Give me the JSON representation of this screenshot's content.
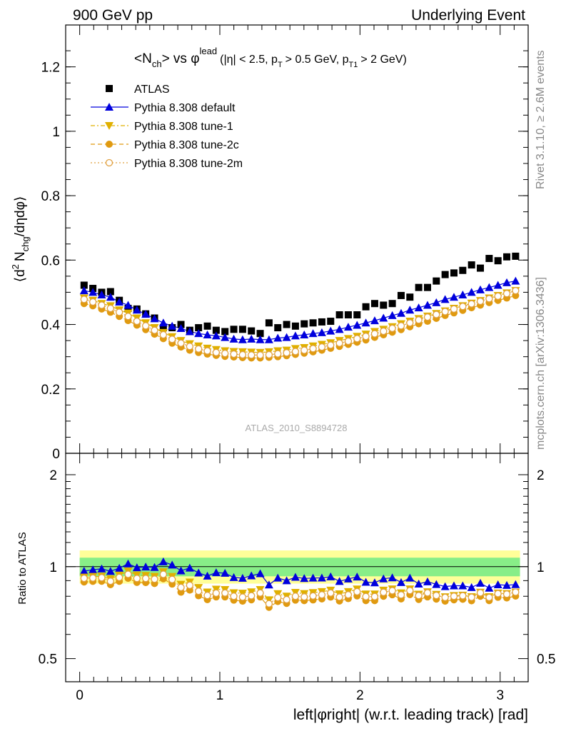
{
  "header": {
    "left": "900 GeV pp",
    "right": "Underlying Event"
  },
  "side_labels": {
    "rivet": "Rivet 3.1.10, ≥ 2.6M events",
    "mcplots": "mcplots.cern.ch [arXiv:1306.3436]"
  },
  "watermark": "ATLAS_2010_S8894728",
  "colors": {
    "atlas": "#000000",
    "default": "#0000dd",
    "tune1": "#e0b000",
    "tune2c": "#e09a10",
    "tune2m": "#e0a040",
    "band_inner": "#88ee88",
    "band_outer": "#ffff99"
  },
  "chart_data": [
    {
      "type": "scatter",
      "title_parts": {
        "a": "<N",
        "a_sub": "ch",
        "b": "> vs φ",
        "b_sup": "lead",
        "c": "(|η| < 2.5, p",
        "c_sub": "T",
        "d": "> 0.5 GeV, p",
        "d_sub": "T1",
        "e": "> 2 GeV)"
      },
      "ylabel_parts": {
        "a": "⟨d",
        "a_sup": "2",
        "b": "N",
        "b_sub": "chg",
        "c": "/dηdφ⟩"
      },
      "xlim": [
        -0.1,
        3.2
      ],
      "ylim": [
        0,
        1.33
      ],
      "yticks": [
        0,
        0.2,
        0.4,
        0.6,
        0.8,
        1,
        1.2
      ],
      "ytick_labels": [
        "0",
        "0.2",
        "0.4",
        "0.6",
        "0.8",
        "1",
        "1.2"
      ],
      "x": [
        0.0314,
        0.0942,
        0.157,
        0.2199,
        0.2827,
        0.3456,
        0.4084,
        0.4712,
        0.5341,
        0.5969,
        0.6597,
        0.7226,
        0.7854,
        0.8482,
        0.9111,
        0.9739,
        1.0367,
        1.0996,
        1.1624,
        1.2252,
        1.2881,
        1.3509,
        1.4137,
        1.4766,
        1.5394,
        1.6022,
        1.6651,
        1.7279,
        1.7907,
        1.8536,
        1.9164,
        1.9792,
        2.042,
        2.1049,
        2.1677,
        2.2305,
        2.2934,
        2.3562,
        2.419,
        2.4819,
        2.5447,
        2.6075,
        2.6704,
        2.7332,
        2.796,
        2.8589,
        2.9217,
        2.9845,
        3.0474,
        3.1102
      ],
      "legend": {
        "placement": "top-left",
        "entries": [
          "ATLAS",
          "Pythia 8.308 default",
          "Pythia 8.308 tune-1",
          "Pythia 8.308 tune-2c",
          "Pythia 8.308 tune-2m"
        ]
      },
      "series": [
        {
          "name": "ATLAS",
          "marker": "square",
          "color": "#000000",
          "line": "none",
          "values": [
            0.522,
            0.512,
            0.5,
            0.502,
            0.475,
            0.45,
            0.448,
            0.433,
            0.42,
            0.39,
            0.39,
            0.4,
            0.382,
            0.39,
            0.395,
            0.382,
            0.378,
            0.385,
            0.385,
            0.38,
            0.372,
            0.405,
            0.39,
            0.4,
            0.395,
            0.402,
            0.405,
            0.408,
            0.41,
            0.43,
            0.43,
            0.43,
            0.455,
            0.465,
            0.46,
            0.465,
            0.49,
            0.485,
            0.515,
            0.515,
            0.535,
            0.555,
            0.56,
            0.568,
            0.585,
            0.575,
            0.605,
            0.598,
            0.61,
            0.612
          ]
        },
        {
          "name": "Pythia 8.308 default",
          "marker": "triangle-up",
          "color": "#0000dd",
          "line": "solid",
          "values": [
            0.505,
            0.5,
            0.492,
            0.485,
            0.47,
            0.46,
            0.445,
            0.432,
            0.418,
            0.405,
            0.395,
            0.388,
            0.378,
            0.372,
            0.368,
            0.365,
            0.36,
            0.355,
            0.353,
            0.355,
            0.353,
            0.353,
            0.358,
            0.36,
            0.365,
            0.368,
            0.372,
            0.375,
            0.38,
            0.385,
            0.392,
            0.398,
            0.405,
            0.412,
            0.42,
            0.428,
            0.435,
            0.445,
            0.452,
            0.46,
            0.468,
            0.478,
            0.485,
            0.492,
            0.5,
            0.508,
            0.515,
            0.522,
            0.53,
            0.535
          ]
        },
        {
          "name": "Pythia 8.308 tune-1",
          "marker": "triangle-down",
          "color": "#e0b000",
          "line": "dashdot",
          "values": [
            0.482,
            0.475,
            0.465,
            0.458,
            0.445,
            0.435,
            0.42,
            0.405,
            0.39,
            0.375,
            0.362,
            0.35,
            0.34,
            0.333,
            0.326,
            0.322,
            0.318,
            0.316,
            0.315,
            0.314,
            0.313,
            0.315,
            0.318,
            0.32,
            0.325,
            0.328,
            0.333,
            0.338,
            0.343,
            0.35,
            0.356,
            0.363,
            0.37,
            0.378,
            0.385,
            0.393,
            0.402,
            0.41,
            0.418,
            0.426,
            0.434,
            0.442,
            0.45,
            0.458,
            0.466,
            0.474,
            0.482,
            0.49,
            0.498,
            0.505
          ]
        },
        {
          "name": "Pythia 8.308 tune-2c",
          "marker": "circle",
          "color": "#e09a10",
          "line": "dashed",
          "values": [
            0.465,
            0.458,
            0.448,
            0.438,
            0.425,
            0.412,
            0.398,
            0.384,
            0.37,
            0.356,
            0.342,
            0.33,
            0.32,
            0.313,
            0.308,
            0.304,
            0.301,
            0.299,
            0.297,
            0.296,
            0.296,
            0.298,
            0.3,
            0.303,
            0.307,
            0.311,
            0.315,
            0.32,
            0.326,
            0.332,
            0.338,
            0.345,
            0.352,
            0.36,
            0.368,
            0.376,
            0.384,
            0.393,
            0.402,
            0.41,
            0.419,
            0.428,
            0.436,
            0.444,
            0.452,
            0.46,
            0.468,
            0.475,
            0.482,
            0.49
          ]
        },
        {
          "name": "Pythia 8.308 tune-2m",
          "marker": "circle-open",
          "color": "#e0a040",
          "line": "dotted",
          "values": [
            0.478,
            0.47,
            0.46,
            0.45,
            0.438,
            0.425,
            0.41,
            0.396,
            0.382,
            0.368,
            0.354,
            0.342,
            0.332,
            0.324,
            0.318,
            0.313,
            0.31,
            0.308,
            0.306,
            0.305,
            0.305,
            0.306,
            0.309,
            0.312,
            0.316,
            0.32,
            0.325,
            0.33,
            0.336,
            0.342,
            0.348,
            0.356,
            0.363,
            0.371,
            0.379,
            0.388,
            0.396,
            0.405,
            0.414,
            0.423,
            0.431,
            0.44,
            0.448,
            0.456,
            0.464,
            0.472,
            0.48,
            0.488,
            0.496,
            0.505
          ]
        }
      ]
    },
    {
      "type": "scatter",
      "ylabel": "Ratio to ATLAS",
      "xlabel": "left|φright| (w.r.t. leading track) [rad]",
      "xlim": [
        -0.1,
        3.2
      ],
      "ylim": [
        0.42,
        2.35
      ],
      "log_y": true,
      "xticks": [
        0,
        1,
        2,
        3
      ],
      "xtick_labels": [
        "0",
        "1",
        "2",
        "3"
      ],
      "yticks": [
        0.5,
        1,
        2
      ],
      "ytick_labels": [
        "0.5",
        "1",
        "2"
      ],
      "reference_line": 1,
      "band_inner": [
        0.93,
        1.07
      ],
      "band_outer": [
        0.88,
        1.13
      ],
      "series": [
        {
          "name": "Pythia 8.308 default",
          "marker": "triangle-up",
          "color": "#0000dd",
          "line": "solid",
          "values": [
            0.967,
            0.977,
            0.984,
            0.966,
            0.989,
            1.022,
            0.993,
            0.998,
            0.995,
            1.038,
            1.013,
            0.97,
            0.99,
            0.954,
            0.932,
            0.956,
            0.952,
            0.922,
            0.917,
            0.934,
            0.949,
            0.872,
            0.918,
            0.9,
            0.924,
            0.915,
            0.918,
            0.919,
            0.927,
            0.895,
            0.912,
            0.926,
            0.89,
            0.886,
            0.913,
            0.92,
            0.888,
            0.918,
            0.878,
            0.893,
            0.875,
            0.861,
            0.866,
            0.866,
            0.855,
            0.883,
            0.851,
            0.873,
            0.869,
            0.874
          ]
        },
        {
          "name": "Pythia 8.308 tune-1",
          "marker": "triangle-down",
          "color": "#e0b000",
          "line": "dashdot",
          "values": [
            0.923,
            0.928,
            0.93,
            0.912,
            0.937,
            0.967,
            0.938,
            0.935,
            0.929,
            0.962,
            0.928,
            0.875,
            0.89,
            0.854,
            0.825,
            0.843,
            0.841,
            0.821,
            0.818,
            0.826,
            0.841,
            0.778,
            0.815,
            0.8,
            0.823,
            0.816,
            0.822,
            0.828,
            0.837,
            0.814,
            0.828,
            0.844,
            0.813,
            0.813,
            0.837,
            0.845,
            0.82,
            0.845,
            0.812,
            0.827,
            0.811,
            0.796,
            0.804,
            0.806,
            0.797,
            0.824,
            0.797,
            0.819,
            0.816,
            0.825
          ]
        },
        {
          "name": "Pythia 8.308 tune-2c",
          "marker": "circle",
          "color": "#e09a10",
          "line": "dashed",
          "values": [
            0.891,
            0.895,
            0.896,
            0.873,
            0.895,
            0.916,
            0.888,
            0.887,
            0.881,
            0.913,
            0.877,
            0.825,
            0.838,
            0.803,
            0.78,
            0.796,
            0.796,
            0.777,
            0.771,
            0.779,
            0.796,
            0.736,
            0.769,
            0.758,
            0.777,
            0.774,
            0.778,
            0.784,
            0.795,
            0.772,
            0.786,
            0.802,
            0.774,
            0.774,
            0.8,
            0.809,
            0.784,
            0.81,
            0.781,
            0.796,
            0.783,
            0.771,
            0.779,
            0.782,
            0.773,
            0.8,
            0.774,
            0.794,
            0.79,
            0.801
          ]
        },
        {
          "name": "Pythia 8.308 tune-2m",
          "marker": "circle-open",
          "color": "#e0a040",
          "line": "dotted",
          "values": [
            0.916,
            0.918,
            0.92,
            0.896,
            0.922,
            0.944,
            0.915,
            0.915,
            0.91,
            0.944,
            0.908,
            0.855,
            0.869,
            0.831,
            0.805,
            0.819,
            0.82,
            0.8,
            0.795,
            0.803,
            0.82,
            0.756,
            0.792,
            0.78,
            0.8,
            0.796,
            0.802,
            0.809,
            0.82,
            0.795,
            0.809,
            0.828,
            0.798,
            0.798,
            0.824,
            0.834,
            0.808,
            0.835,
            0.804,
            0.821,
            0.805,
            0.793,
            0.8,
            0.803,
            0.794,
            0.821,
            0.793,
            0.816,
            0.813,
            0.825
          ]
        }
      ]
    }
  ]
}
